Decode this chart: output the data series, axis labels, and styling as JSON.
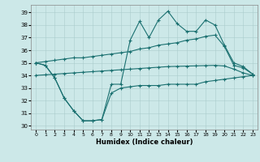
{
  "xlabel": "Humidex (Indice chaleur)",
  "bg_color": "#cce8e8",
  "grid_color": "#aacccc",
  "line_color": "#1a7070",
  "xlim": [
    -0.5,
    23.5
  ],
  "ylim": [
    29.7,
    39.6
  ],
  "yticks": [
    30,
    31,
    32,
    33,
    34,
    35,
    36,
    37,
    38,
    39
  ],
  "xticks": [
    0,
    1,
    2,
    3,
    4,
    5,
    6,
    7,
    8,
    9,
    10,
    11,
    12,
    13,
    14,
    15,
    16,
    17,
    18,
    19,
    20,
    21,
    22,
    23
  ],
  "line_zigzag_top_x": [
    0,
    1,
    2,
    3,
    4,
    5,
    6,
    7,
    8,
    9,
    10,
    11,
    12,
    13,
    14,
    15,
    16,
    17,
    18,
    19,
    20,
    21,
    22,
    23
  ],
  "line_zigzag_top_y": [
    35.0,
    34.8,
    33.8,
    32.2,
    31.2,
    30.4,
    30.4,
    30.5,
    33.3,
    33.3,
    36.8,
    38.3,
    37.0,
    38.4,
    39.1,
    38.1,
    37.5,
    37.5,
    38.4,
    38.0,
    36.4,
    35.0,
    34.7,
    34.1
  ],
  "line_upper_diag_x": [
    0,
    1,
    2,
    3,
    4,
    5,
    6,
    7,
    8,
    9,
    10,
    11,
    12,
    13,
    14,
    15,
    16,
    17,
    18,
    19,
    20,
    21,
    22,
    23
  ],
  "line_upper_diag_y": [
    35.0,
    35.1,
    35.2,
    35.3,
    35.4,
    35.4,
    35.5,
    35.6,
    35.7,
    35.8,
    35.9,
    36.1,
    36.2,
    36.4,
    36.5,
    36.6,
    36.8,
    36.9,
    37.1,
    37.2,
    36.3,
    34.8,
    34.6,
    34.1
  ],
  "line_lower_diag_x": [
    0,
    1,
    2,
    3,
    4,
    5,
    6,
    7,
    8,
    9,
    10,
    11,
    12,
    13,
    14,
    15,
    16,
    17,
    18,
    19,
    20,
    21,
    22,
    23
  ],
  "line_lower_diag_y": [
    34.0,
    34.05,
    34.1,
    34.15,
    34.2,
    34.25,
    34.3,
    34.35,
    34.4,
    34.45,
    34.5,
    34.55,
    34.6,
    34.65,
    34.7,
    34.72,
    34.74,
    34.76,
    34.78,
    34.8,
    34.75,
    34.5,
    34.2,
    34.0
  ],
  "line_zigzag_bot_x": [
    0,
    1,
    2,
    3,
    4,
    5,
    6,
    7,
    8,
    9,
    10,
    11,
    12,
    13,
    14,
    15,
    16,
    17,
    18,
    19,
    20,
    21,
    22,
    23
  ],
  "line_zigzag_bot_y": [
    35.0,
    34.8,
    33.8,
    32.2,
    31.2,
    30.4,
    30.4,
    30.5,
    32.6,
    33.0,
    33.1,
    33.2,
    33.2,
    33.2,
    33.3,
    33.3,
    33.3,
    33.3,
    33.5,
    33.6,
    33.7,
    33.8,
    33.9,
    34.0
  ]
}
